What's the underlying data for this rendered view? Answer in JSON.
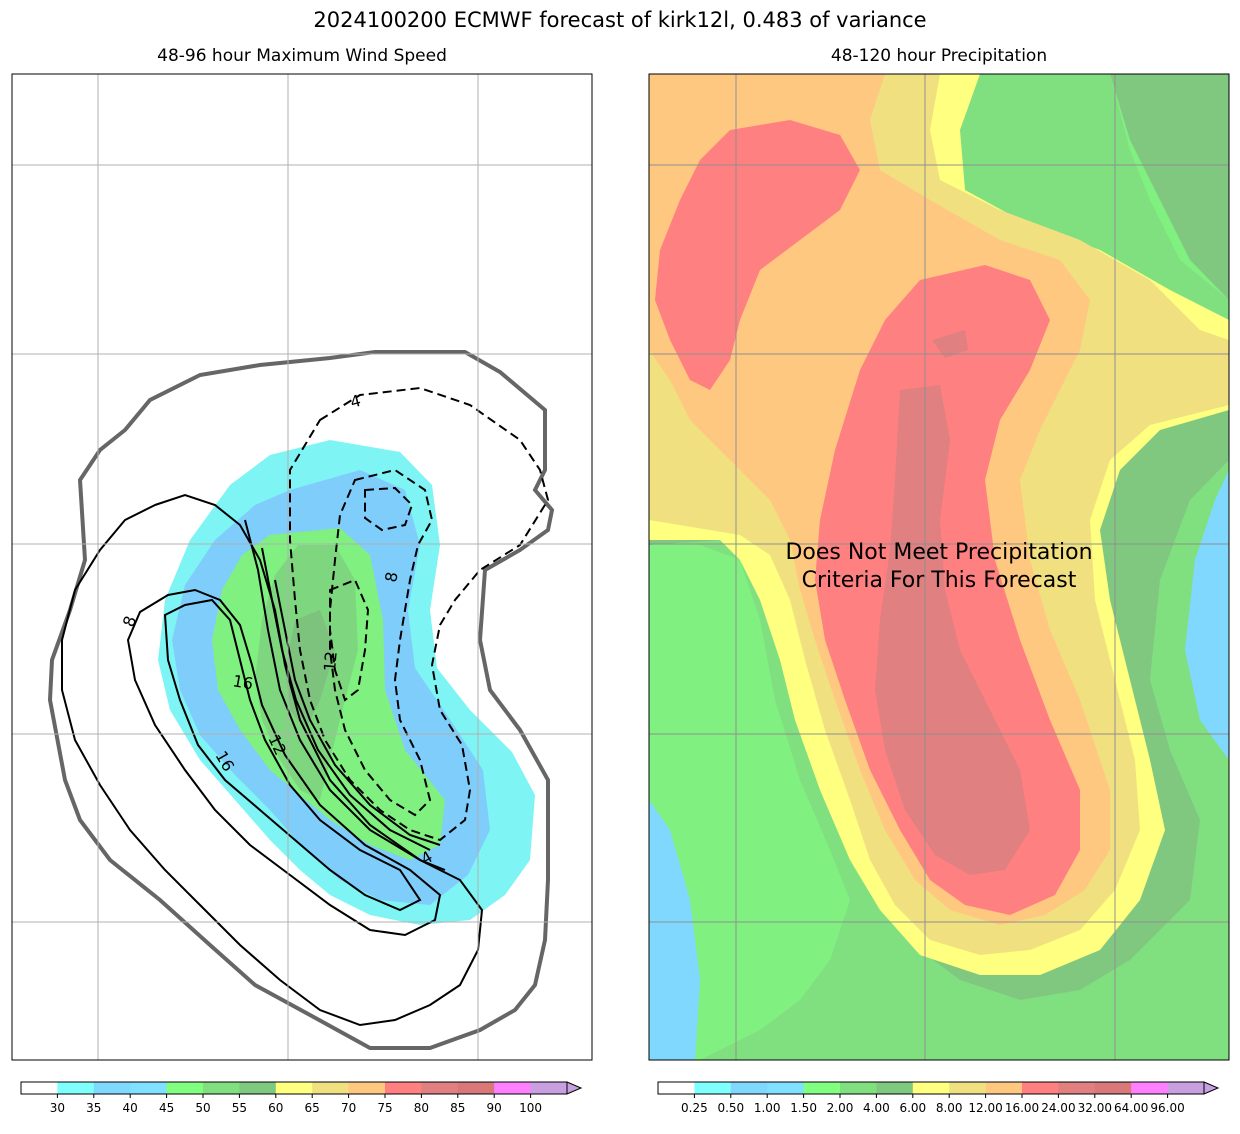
{
  "figure": {
    "title": "2024100200 ECMWF forecast of kirk12l, 0.483 of variance"
  },
  "chart_data": [
    {
      "type": "heatmap",
      "title": "48-96 hour Maximum Wind Speed",
      "grid": true,
      "fill_levels": [
        30,
        35,
        40,
        45,
        50,
        55,
        60
      ],
      "fill_colors": [
        "#7ff4f4",
        "#7fcdfa",
        "#7ce18e",
        "#7ce18e",
        "#80f080",
        "#7ed77e",
        "#7dc27d"
      ],
      "contour_labels": [
        "4",
        "8",
        "8",
        "12",
        "12",
        "16",
        "16",
        "4"
      ],
      "contour_styles": {
        "positive": "solid",
        "negative": "dashed",
        "outline": "thick gray"
      },
      "colorbar": {
        "ticks": [
          "30",
          "35",
          "40",
          "45",
          "50",
          "55",
          "60",
          "65",
          "70",
          "75",
          "80",
          "85",
          "90",
          "100"
        ],
        "colors": [
          "#ffffff",
          "#80ffff",
          "#80d8ff",
          "#80e0ff",
          "#80ff80",
          "#80e080",
          "#80c880",
          "#ffff80",
          "#f0e080",
          "#ffc880",
          "#ff8080",
          "#e08080",
          "#d87878",
          "#ff80ff",
          "#c8a0e0"
        ],
        "extend": "max"
      }
    },
    {
      "type": "heatmap",
      "title": "48-120 hour Precipitation",
      "grid": true,
      "annotation": "Does Not Meet Precipitation\nCriteria For This Forecast",
      "colorbar": {
        "ticks": [
          "0.25",
          "0.50",
          "1.00",
          "1.50",
          "2.00",
          "4.00",
          "6.00",
          "8.00",
          "12.00",
          "16.00",
          "24.00",
          "32.00",
          "64.00",
          "96.00"
        ],
        "colors": [
          "#ffffff",
          "#80ffff",
          "#80d8ff",
          "#80e0ff",
          "#80ff80",
          "#80e080",
          "#80c880",
          "#ffff80",
          "#f0e080",
          "#ffc880",
          "#ff8080",
          "#e08080",
          "#d87878",
          "#ff80ff",
          "#c8a0e0"
        ],
        "extend": "max"
      }
    }
  ]
}
